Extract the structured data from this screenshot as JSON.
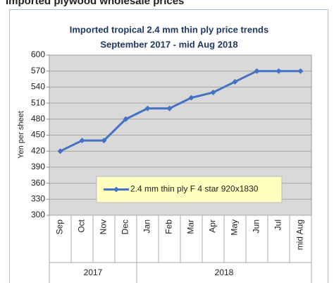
{
  "header": {
    "title": "Imported plywood wholesale prices"
  },
  "chart_data": {
    "type": "line",
    "title": "Imported tropical 2.4 mm thin ply price trends",
    "subtitle": "September 2017 -  mid  Aug 2018",
    "y_label": "Yen per sheet",
    "category_groups": [
      {
        "name": "2017",
        "categories": [
          "Sep",
          "Oct",
          "Nov",
          "Dec"
        ]
      },
      {
        "name": "2018",
        "categories": [
          "Jan",
          "Feb",
          "Mar",
          "Apr",
          "May",
          "Jun",
          "Jul",
          "mid Aug"
        ]
      }
    ],
    "series": [
      {
        "name": "2.4 mm thin ply F 4 star 920x1830",
        "color": "#4472c4",
        "values": [
          420,
          440,
          440,
          480,
          500,
          500,
          520,
          530,
          550,
          570,
          570,
          570
        ]
      }
    ],
    "ylim": [
      300,
      600
    ],
    "yticks": [
      300,
      330,
      360,
      390,
      420,
      450,
      480,
      510,
      540,
      570,
      600
    ],
    "grid": true,
    "legend": "center"
  }
}
